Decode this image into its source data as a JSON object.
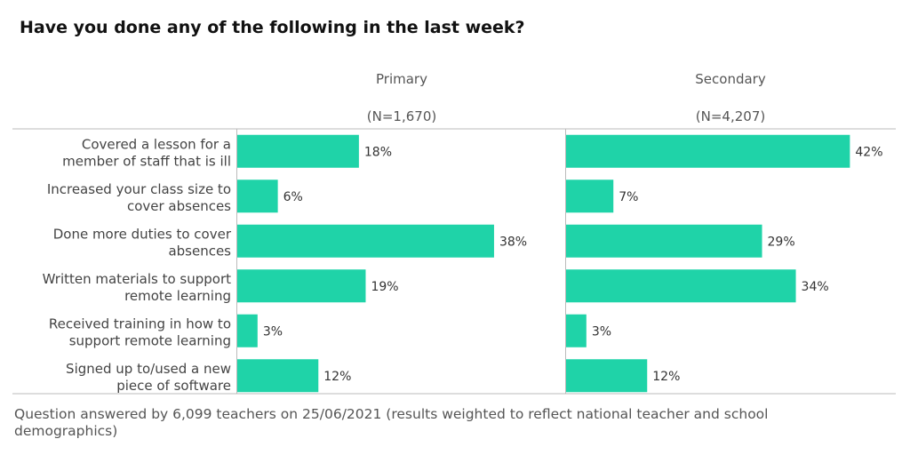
{
  "title": "Have you done any of the following in the last week?",
  "footnote": "Question answered by 6,099 teachers on 25/06/2021 (results weighted to reflect national teacher and school demographics)",
  "colors": {
    "bar": "#1fd3a8",
    "grid": "#bbbbbb",
    "label": "#333333"
  },
  "chart_data": {
    "type": "bar",
    "orientation": "horizontal",
    "categories": [
      [
        "Covered a lesson for a",
        "member of staff that is ill"
      ],
      [
        "Increased your class size to",
        "cover absences"
      ],
      [
        "Done more duties to cover",
        "absences"
      ],
      [
        "Written materials to support",
        "remote learning"
      ],
      [
        "Received training in how to",
        "support remote learning"
      ],
      [
        "Signed up to/used a new",
        "piece of software"
      ]
    ],
    "series": [
      {
        "name": "Primary",
        "n_label": "(N=1,670)",
        "values": [
          18,
          6,
          38,
          19,
          3,
          12
        ]
      },
      {
        "name": "Secondary",
        "n_label": "(N=4,207)",
        "values": [
          42,
          7,
          29,
          34,
          3,
          12
        ]
      }
    ],
    "value_suffix": "%",
    "xlim": [
      0,
      48
    ],
    "grid": false
  }
}
